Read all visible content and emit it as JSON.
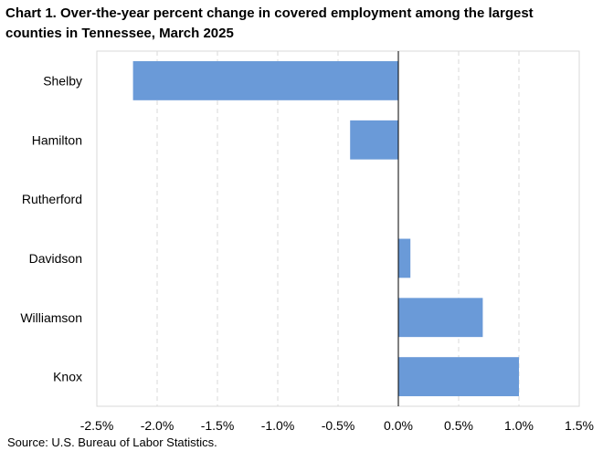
{
  "chart_data": {
    "type": "bar",
    "orientation": "horizontal",
    "title": "Chart 1. Over-the-year percent change in covered employment among the largest counties in Tennessee, March 2025",
    "categories": [
      "Shelby",
      "Hamilton",
      "Rutherford",
      "Davidson",
      "Williamson",
      "Knox"
    ],
    "values": [
      -2.2,
      -0.4,
      0.0,
      0.1,
      0.7,
      1.0
    ],
    "xlim": [
      -2.5,
      1.5
    ],
    "xticks": [
      -2.5,
      -2.0,
      -1.5,
      -1.0,
      -0.5,
      0.0,
      0.5,
      1.0,
      1.5
    ],
    "xtick_labels": [
      "-2.5%",
      "-2.0%",
      "-1.5%",
      "-1.0%",
      "-0.5%",
      "0.0%",
      "0.5%",
      "1.0%",
      "1.5%"
    ],
    "grid": "vertical-dashed",
    "bar_color": "#6a9ad8",
    "source": "Source: U.S. Bureau of Labor Statistics."
  }
}
